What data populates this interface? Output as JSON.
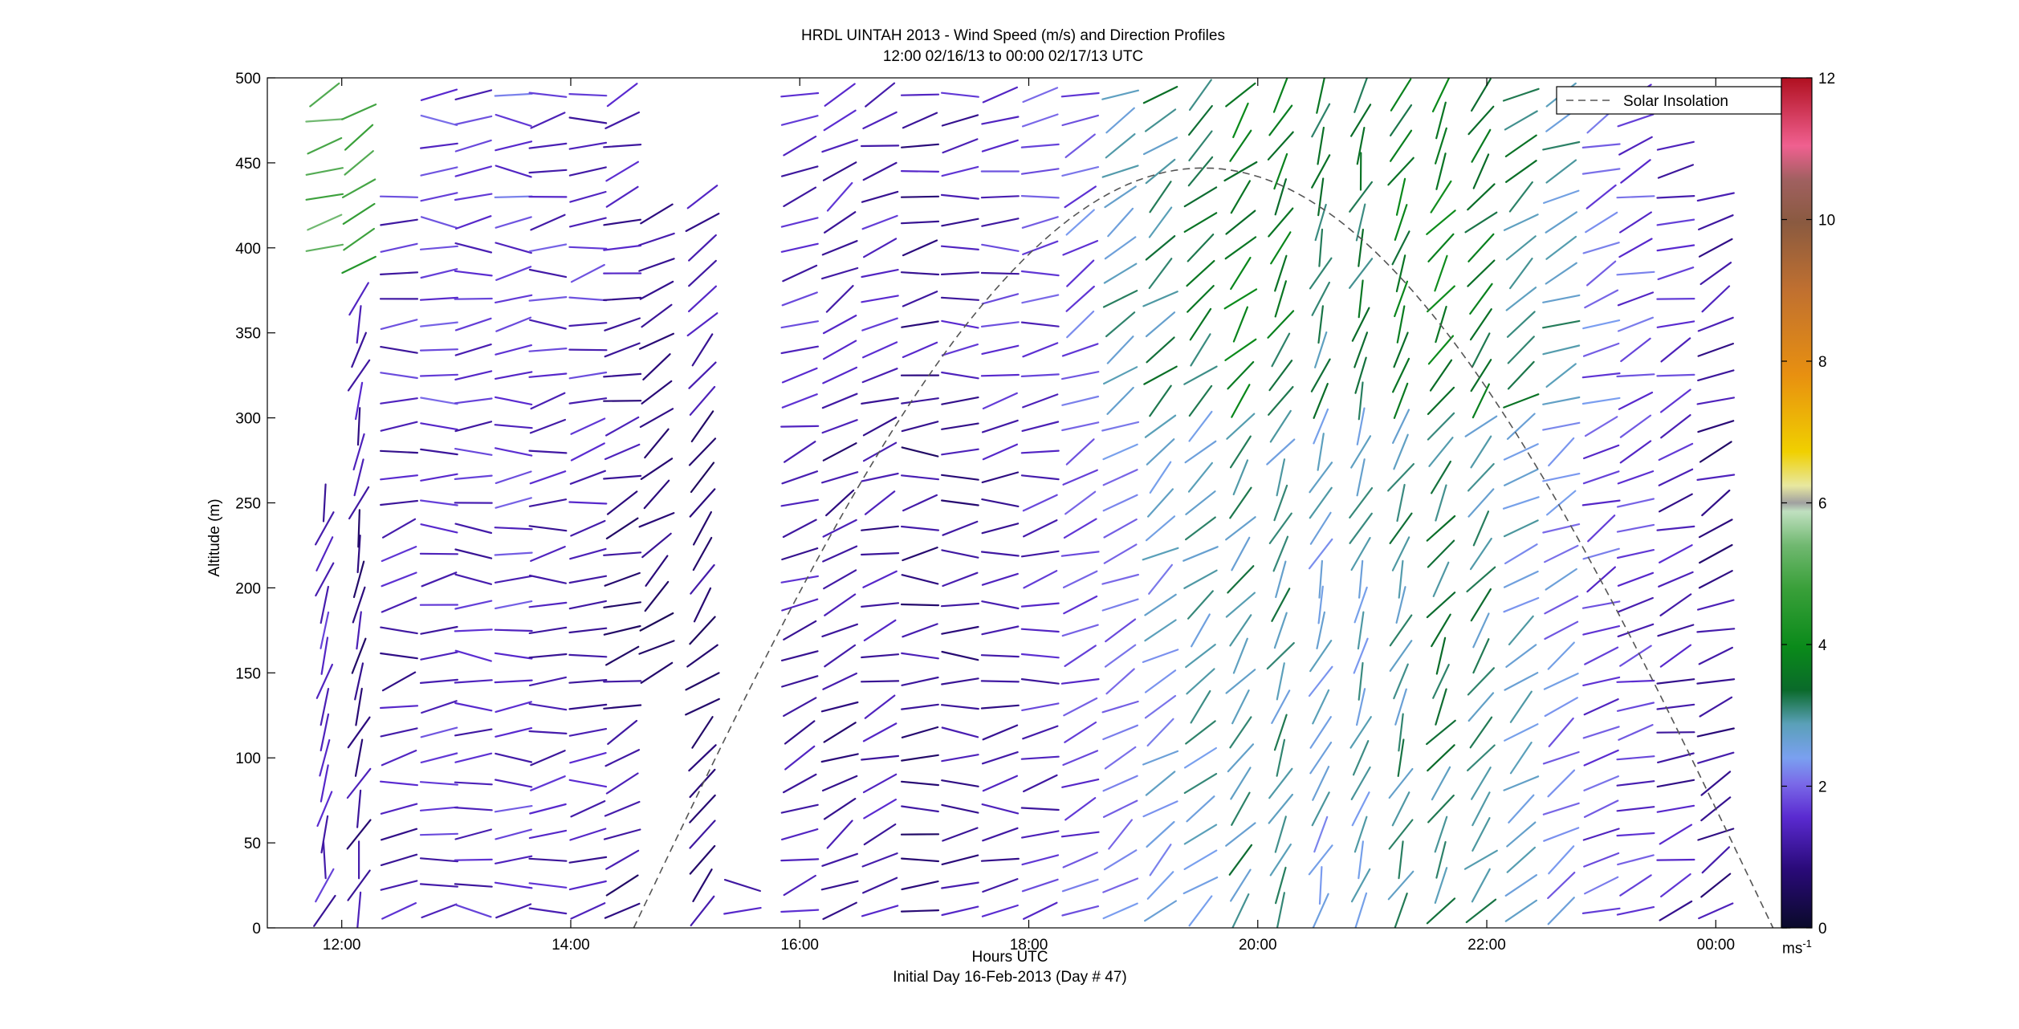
{
  "title_line1": "HRDL UINTAH 2013 - Wind Speed (m/s) and Direction Profiles",
  "title_line2": "12:00 02/16/13 to 00:00 02/17/13  UTC",
  "xlabel": "Hours UTC",
  "subtitle": "Initial Day 16-Feb-2013 (Day # 47)",
  "ylabel": "Altitude (m)",
  "colorbar_unit": "ms",
  "colorbar_unit_sup": "-1",
  "legend": "Solar Insolation",
  "chart_data": {
    "type": "wind-barb-profile",
    "x_range_hours": [
      11.35,
      24.65
    ],
    "y_range_m": [
      0,
      500
    ],
    "x_ticks": [
      {
        "v": 12,
        "label": "12:00"
      },
      {
        "v": 14,
        "label": "14:00"
      },
      {
        "v": 16,
        "label": "16:00"
      },
      {
        "v": 18,
        "label": "18:00"
      },
      {
        "v": 20,
        "label": "20:00"
      },
      {
        "v": 22,
        "label": "22:00"
      },
      {
        "v": 24,
        "label": "00:00"
      }
    ],
    "y_ticks": [
      0,
      50,
      100,
      150,
      200,
      250,
      300,
      350,
      400,
      450,
      500
    ],
    "colorbar_range": [
      0,
      12
    ],
    "colorbar_ticks": [
      0,
      2,
      4,
      6,
      8,
      10,
      12
    ],
    "colormap": [
      [
        0.0,
        "#0a0a2a"
      ],
      [
        0.07,
        "#2a0a7a"
      ],
      [
        0.13,
        "#5a2ad0"
      ],
      [
        0.17,
        "#7a6ae8"
      ],
      [
        0.2,
        "#7aa0f0"
      ],
      [
        0.24,
        "#5aa0b8"
      ],
      [
        0.28,
        "#0a6a2a"
      ],
      [
        0.33,
        "#0a8a1a"
      ],
      [
        0.4,
        "#3aa03a"
      ],
      [
        0.45,
        "#70b870"
      ],
      [
        0.49,
        "#c0e0c0"
      ],
      [
        0.5,
        "#a0a0a0"
      ],
      [
        0.52,
        "#e8e8a0"
      ],
      [
        0.56,
        "#f0d000"
      ],
      [
        0.65,
        "#e89010"
      ],
      [
        0.75,
        "#c07030"
      ],
      [
        0.83,
        "#8a5a40"
      ],
      [
        0.88,
        "#a06060"
      ],
      [
        0.92,
        "#f06090"
      ],
      [
        1.0,
        "#b01020"
      ]
    ],
    "solar_insolation": {
      "start_hour": 14.55,
      "end_hour": 24.5,
      "peak_hour": 19.52,
      "peak_altitude_m": 447
    },
    "profiles": [
      {
        "t": 11.85,
        "speed": 1.4,
        "dir": 195,
        "alt_min": 10,
        "alt_max": 250
      },
      {
        "t": 11.85,
        "speed": 4.5,
        "dir": 250,
        "alt_min": 400,
        "alt_max": 490
      },
      {
        "t": 12.15,
        "speed": 1.0,
        "dir": 200,
        "alt_min": 10,
        "alt_max": 380
      },
      {
        "t": 12.15,
        "speed": 4.2,
        "dir": 240,
        "alt_min": 390,
        "alt_max": 490
      },
      {
        "t": 12.5,
        "speed": 1.3,
        "dir": 260,
        "alt_min": 10,
        "alt_max": 440
      },
      {
        "t": 12.85,
        "speed": 1.5,
        "dir": 268,
        "alt_min": 10,
        "alt_max": 490
      },
      {
        "t": 13.15,
        "speed": 1.4,
        "dir": 270,
        "alt_min": 10,
        "alt_max": 490
      },
      {
        "t": 13.5,
        "speed": 1.6,
        "dir": 268,
        "alt_min": 10,
        "alt_max": 490
      },
      {
        "t": 13.8,
        "speed": 1.4,
        "dir": 265,
        "alt_min": 10,
        "alt_max": 490
      },
      {
        "t": 14.15,
        "speed": 1.3,
        "dir": 262,
        "alt_min": 10,
        "alt_max": 490
      },
      {
        "t": 14.45,
        "speed": 1.0,
        "dir": 250,
        "alt_min": 10,
        "alt_max": 490
      },
      {
        "t": 14.75,
        "speed": 0.8,
        "dir": 235,
        "alt_min": 150,
        "alt_max": 430
      },
      {
        "t": 15.15,
        "speed": 0.9,
        "dir": 225,
        "alt_min": 10,
        "alt_max": 440
      },
      {
        "t": 15.5,
        "speed": 1.5,
        "dir": 270,
        "alt_min": 10,
        "alt_max": 30
      },
      {
        "t": 16.0,
        "speed": 1.3,
        "dir": 250,
        "alt_min": 10,
        "alt_max": 490
      },
      {
        "t": 16.35,
        "speed": 1.1,
        "dir": 240,
        "alt_min": 10,
        "alt_max": 490
      },
      {
        "t": 16.7,
        "speed": 1.2,
        "dir": 250,
        "alt_min": 10,
        "alt_max": 490
      },
      {
        "t": 17.05,
        "speed": 1.0,
        "dir": 265,
        "alt_min": 10,
        "alt_max": 490
      },
      {
        "t": 17.4,
        "speed": 1.1,
        "dir": 268,
        "alt_min": 10,
        "alt_max": 490
      },
      {
        "t": 17.75,
        "speed": 1.3,
        "dir": 265,
        "alt_min": 10,
        "alt_max": 490
      },
      {
        "t": 18.1,
        "speed": 1.5,
        "dir": 258,
        "alt_min": 10,
        "alt_max": 490
      },
      {
        "t": 18.45,
        "speed": 1.8,
        "dir": 245,
        "alt_min": 10,
        "alt_max": 490
      },
      {
        "t": 18.8,
        "speed": 2.2,
        "dir": 238,
        "alt_min": 10,
        "alt_max": 490
      },
      {
        "t": 19.15,
        "speed": 2.5,
        "dir": 232,
        "alt_min": 10,
        "alt_max": 490
      },
      {
        "t": 19.5,
        "speed": 2.8,
        "dir": 228,
        "alt_min": 10,
        "alt_max": 490
      },
      {
        "t": 19.85,
        "speed": 3.0,
        "dir": 220,
        "alt_min": 10,
        "alt_max": 490
      },
      {
        "t": 20.2,
        "speed": 2.9,
        "dir": 210,
        "alt_min": 10,
        "alt_max": 490
      },
      {
        "t": 20.55,
        "speed": 2.6,
        "dir": 200,
        "alt_min": 10,
        "alt_max": 490
      },
      {
        "t": 20.9,
        "speed": 2.7,
        "dir": 198,
        "alt_min": 10,
        "alt_max": 490
      },
      {
        "t": 21.25,
        "speed": 3.0,
        "dir": 205,
        "alt_min": 10,
        "alt_max": 490
      },
      {
        "t": 21.6,
        "speed": 3.1,
        "dir": 212,
        "alt_min": 10,
        "alt_max": 490
      },
      {
        "t": 21.95,
        "speed": 3.0,
        "dir": 222,
        "alt_min": 10,
        "alt_max": 490
      },
      {
        "t": 22.3,
        "speed": 2.6,
        "dir": 232,
        "alt_min": 10,
        "alt_max": 490
      },
      {
        "t": 22.65,
        "speed": 2.2,
        "dir": 240,
        "alt_min": 10,
        "alt_max": 490
      },
      {
        "t": 23.0,
        "speed": 1.8,
        "dir": 245,
        "alt_min": 10,
        "alt_max": 490
      },
      {
        "t": 23.3,
        "speed": 1.6,
        "dir": 248,
        "alt_min": 10,
        "alt_max": 490
      },
      {
        "t": 23.65,
        "speed": 1.3,
        "dir": 250,
        "alt_min": 10,
        "alt_max": 470
      },
      {
        "t": 24.0,
        "speed": 1.0,
        "dir": 245,
        "alt_min": 10,
        "alt_max": 440
      }
    ],
    "range_gate_m": 15
  }
}
